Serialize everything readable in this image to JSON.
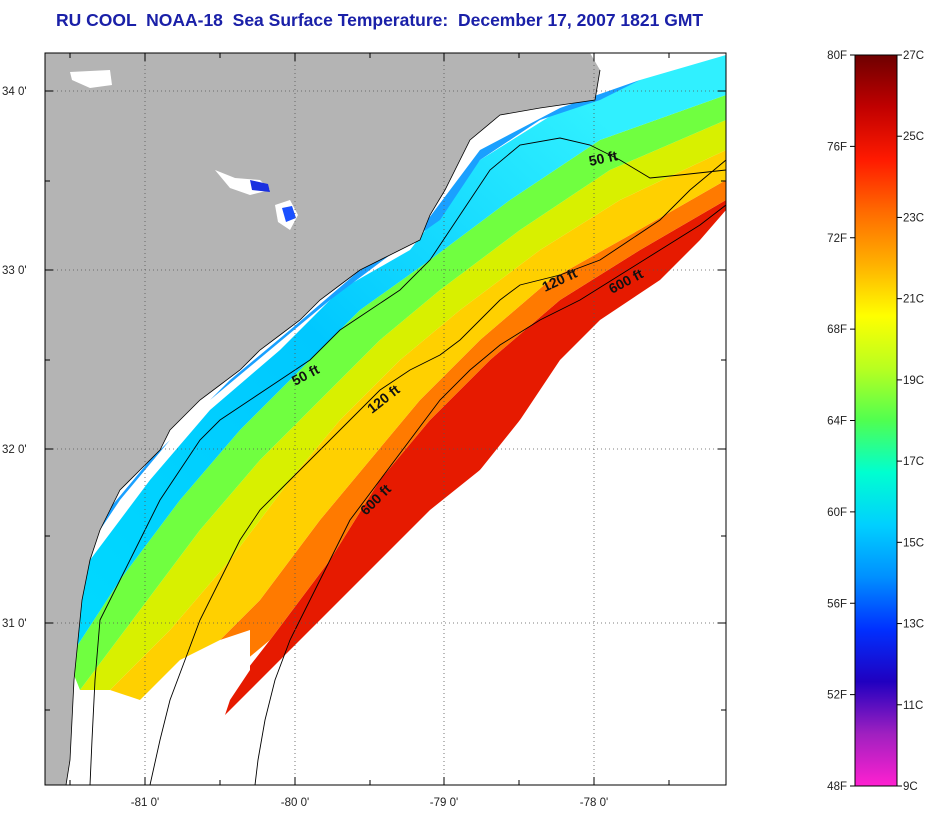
{
  "title": "RU COOL  NOAA-18  Sea Surface Temperature:  December 17, 2007 1821 GMT",
  "map": {
    "latitude_labels": [
      "34 0'",
      "33 0'",
      "32 0'",
      "31 0'"
    ],
    "longitude_labels": [
      "-81 0'",
      "-80 0'",
      "-79 0'",
      "-78 0'"
    ],
    "land_color": "#b4b4b4",
    "no_data_color": "#ffffff",
    "grid": "dotted",
    "contour_labels": [
      "50 ft",
      "120 ft",
      "600 ft",
      "50 ft",
      "120 ft",
      "600 ft"
    ]
  },
  "colorbar": {
    "fahrenheit_labels": [
      "80F",
      "76F",
      "72F",
      "68F",
      "64F",
      "60F",
      "56F",
      "52F",
      "48F"
    ],
    "celsius_labels": [
      "27C",
      "25C",
      "23C",
      "21C",
      "19C",
      "17C",
      "15C",
      "13C",
      "11C",
      "9C"
    ],
    "colors_top_to_bottom": [
      "#6e0000",
      "#c00000",
      "#ff1a00",
      "#ff6a00",
      "#ffb000",
      "#ffff00",
      "#b8ff20",
      "#50ff50",
      "#00ffd0",
      "#00d0ff",
      "#0090ff",
      "#0030ff",
      "#2000c0",
      "#a020c0",
      "#ff20d0"
    ]
  }
}
